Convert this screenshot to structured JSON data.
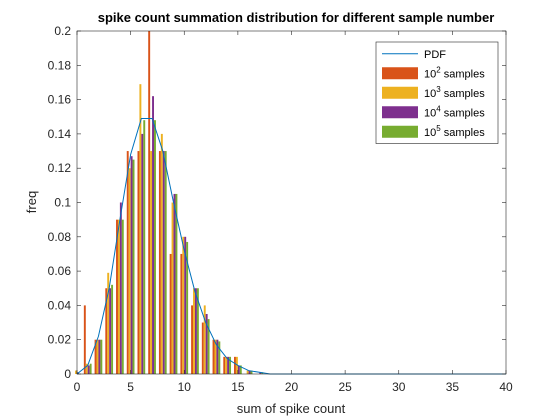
{
  "chart_data": {
    "type": "bar",
    "title": "spike count summation distribution for different sample number",
    "xlabel": "sum of spike count",
    "ylabel": "freq",
    "xlim": [
      0,
      40
    ],
    "ylim": [
      0,
      0.2
    ],
    "xticks": [
      "0",
      "5",
      "10",
      "15",
      "20",
      "25",
      "30",
      "35",
      "40"
    ],
    "yticks": [
      "0",
      "0.02",
      "0.04",
      "0.06",
      "0.08",
      "0.1",
      "0.12",
      "0.14",
      "0.16",
      "0.18",
      "0.2"
    ],
    "x": [
      0,
      1,
      2,
      3,
      4,
      5,
      6,
      7,
      8,
      9,
      10,
      11,
      12,
      13,
      14,
      15,
      16,
      17,
      18
    ],
    "series": [
      {
        "name": "10",
        "name_sup": "2",
        "name_suffix": " samples",
        "color": "#D95319",
        "values": [
          0.0,
          0.04,
          0.02,
          0.05,
          0.09,
          0.13,
          0.13,
          0.2,
          0.13,
          0.07,
          0.07,
          0.04,
          0.03,
          0.02,
          0.01,
          0.01,
          0.0,
          0.0,
          0.0
        ]
      },
      {
        "name": "10",
        "name_sup": "3",
        "name_suffix": " samples",
        "color": "#EDB120",
        "values": [
          0.002,
          0.006,
          0.02,
          0.059,
          0.09,
          0.12,
          0.169,
          0.13,
          0.14,
          0.1,
          0.08,
          0.05,
          0.04,
          0.02,
          0.01,
          0.01,
          0.002,
          0.0,
          0.0
        ]
      },
      {
        "name": "10",
        "name_sup": "4",
        "name_suffix": " samples",
        "color": "#7E2F8E",
        "values": [
          0.001,
          0.005,
          0.02,
          0.05,
          0.1,
          0.127,
          0.14,
          0.162,
          0.13,
          0.105,
          0.08,
          0.05,
          0.035,
          0.02,
          0.01,
          0.005,
          0.002,
          0.001,
          0.0
        ]
      },
      {
        "name": "10",
        "name_sup": "5",
        "name_suffix": " samples",
        "color": "#77AC30",
        "values": [
          0.0,
          0.006,
          0.02,
          0.052,
          0.09,
          0.125,
          0.148,
          0.148,
          0.13,
          0.105,
          0.077,
          0.05,
          0.032,
          0.019,
          0.01,
          0.005,
          0.002,
          0.001,
          0.0
        ]
      }
    ],
    "pdf": {
      "name": "PDF",
      "color": "#0072BD",
      "x": [
        0,
        1,
        2,
        3,
        4,
        5,
        6,
        7,
        8,
        9,
        10,
        11,
        12,
        13,
        14,
        15,
        16,
        17,
        18,
        20,
        25,
        30,
        35,
        40
      ],
      "y": [
        0.0,
        0.005,
        0.022,
        0.05,
        0.09,
        0.128,
        0.149,
        0.149,
        0.13,
        0.1,
        0.072,
        0.048,
        0.03,
        0.017,
        0.009,
        0.005,
        0.002,
        0.001,
        0.0,
        0.0,
        0.0,
        0.0,
        0.0,
        0.0
      ]
    },
    "legend": "top-right",
    "grid": false
  }
}
